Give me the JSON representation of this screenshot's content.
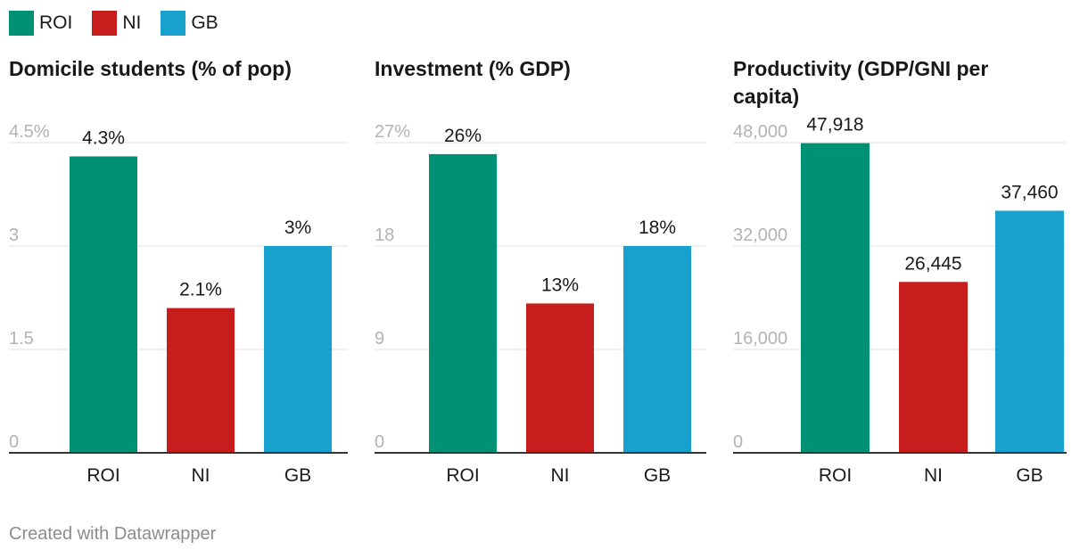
{
  "legend": [
    {
      "label": "ROI",
      "color": "#009175"
    },
    {
      "label": "NI",
      "color": "#c71e1d"
    },
    {
      "label": "GB",
      "color": "#18a1cd"
    }
  ],
  "chart_data": [
    {
      "type": "bar",
      "title": "Domicile students (% of pop)",
      "categories": [
        "ROI",
        "NI",
        "GB"
      ],
      "values": [
        4.3,
        2.1,
        3
      ],
      "value_labels": [
        "4.3%",
        "2.1%",
        "3%"
      ],
      "ylim": [
        0,
        4.5
      ],
      "yticks": [
        0,
        1.5,
        3,
        4.5
      ],
      "ytick_labels": [
        "0",
        "1.5",
        "3",
        "4.5%"
      ],
      "grid": true
    },
    {
      "type": "bar",
      "title": "Investment (% GDP)",
      "categories": [
        "ROI",
        "NI",
        "GB"
      ],
      "values": [
        26,
        13,
        18
      ],
      "value_labels": [
        "26%",
        "13%",
        "18%"
      ],
      "ylim": [
        0,
        27
      ],
      "yticks": [
        0,
        9,
        18,
        27
      ],
      "ytick_labels": [
        "0",
        "9",
        "18",
        "27%"
      ],
      "grid": true
    },
    {
      "type": "bar",
      "title": "Productivity (GDP/GNI per capita)",
      "categories": [
        "ROI",
        "NI",
        "GB"
      ],
      "values": [
        47918,
        26445,
        37460
      ],
      "value_labels": [
        "47,918",
        "26,445",
        "37,460"
      ],
      "ylim": [
        0,
        48000
      ],
      "yticks": [
        0,
        16000,
        32000,
        48000
      ],
      "ytick_labels": [
        "0",
        "16,000",
        "32,000",
        "48,000"
      ],
      "grid": true
    }
  ],
  "footer": "Created with Datawrapper"
}
